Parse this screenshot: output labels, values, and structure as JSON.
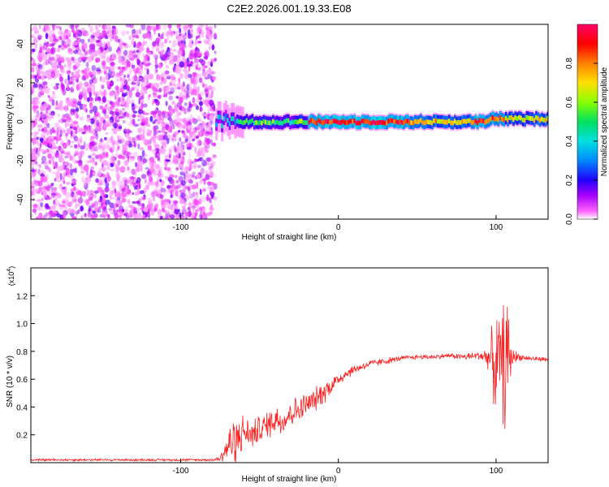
{
  "figure": {
    "title": "C2E2.2026.001.19.33.E08"
  },
  "chart_data": [
    {
      "type": "heatmap",
      "xlabel": "Height of straight line (km)",
      "ylabel": "Frequency (Hz)",
      "xlim": [
        -195,
        133
      ],
      "ylim": [
        -50,
        50
      ],
      "xticks": [
        -100,
        0,
        100
      ],
      "yticks": [
        -40,
        -20,
        0,
        20,
        40
      ],
      "noise_region_x": [
        -195,
        -78
      ],
      "signal_band": {
        "x_start": -78,
        "x_end": 133,
        "center_hz": 0,
        "half_width_hz": 2,
        "note": "Narrow band near 0 Hz with amplitude rising to ~1.0 between -10 and 40 km, ~0.9 near 100 km"
      },
      "colorbar": {
        "label": "Normalized spectral amplitude",
        "range": [
          0,
          1
        ],
        "ticks": [
          0.0,
          0.2,
          0.4,
          0.6,
          0.8
        ],
        "tick_labels": [
          "0.0",
          "0.2",
          "0.4",
          "0.6",
          "0.8"
        ],
        "colormap": [
          "#ffffff",
          "#ff44ff",
          "#aa00ff",
          "#2200ff",
          "#0088ff",
          "#00e0e0",
          "#00e060",
          "#88ff00",
          "#ffe000",
          "#ff8000",
          "#ff0000",
          "#ff0066"
        ]
      }
    },
    {
      "type": "line",
      "xlabel": "Height of straight line (km)",
      "ylabel": "SNR (10 * v/v)",
      "y_scale_label": "(x10",
      "y_scale_exponent": "4",
      "y_scale_suffix": ")",
      "xlim": [
        -195,
        133
      ],
      "ylim": [
        0,
        1.4
      ],
      "xticks": [
        -100,
        0,
        100
      ],
      "yticks": [
        0.2,
        0.4,
        0.6,
        0.8,
        1.0,
        1.2
      ],
      "series": [
        {
          "name": "SNR",
          "color": "#ff2020",
          "x": [
            -195,
            -150,
            -100,
            -80,
            -75,
            -70,
            -65,
            -60,
            -55,
            -50,
            -45,
            -40,
            -35,
            -30,
            -25,
            -20,
            -15,
            -10,
            -5,
            0,
            5,
            10,
            20,
            30,
            40,
            50,
            60,
            70,
            80,
            90,
            95,
            100,
            103,
            105,
            107,
            110,
            115,
            120,
            133
          ],
          "values": [
            0.02,
            0.02,
            0.02,
            0.02,
            0.03,
            0.12,
            0.18,
            0.22,
            0.2,
            0.24,
            0.27,
            0.32,
            0.3,
            0.36,
            0.38,
            0.42,
            0.45,
            0.5,
            0.55,
            0.6,
            0.64,
            0.67,
            0.71,
            0.73,
            0.75,
            0.76,
            0.76,
            0.77,
            0.76,
            0.77,
            0.76,
            0.7,
            0.75,
            0.7,
            0.74,
            0.76,
            0.76,
            0.75,
            0.74
          ],
          "noise_amplitude": [
            0.01,
            0.01,
            0.01,
            0.01,
            0.03,
            0.15,
            0.22,
            0.14,
            0.12,
            0.12,
            0.12,
            0.14,
            0.12,
            0.12,
            0.12,
            0.1,
            0.1,
            0.1,
            0.08,
            0.06,
            0.05,
            0.04,
            0.03,
            0.03,
            0.02,
            0.02,
            0.02,
            0.02,
            0.03,
            0.04,
            0.1,
            0.45,
            0.35,
            0.55,
            0.6,
            0.08,
            0.03,
            0.02,
            0.02
          ]
        }
      ]
    }
  ]
}
